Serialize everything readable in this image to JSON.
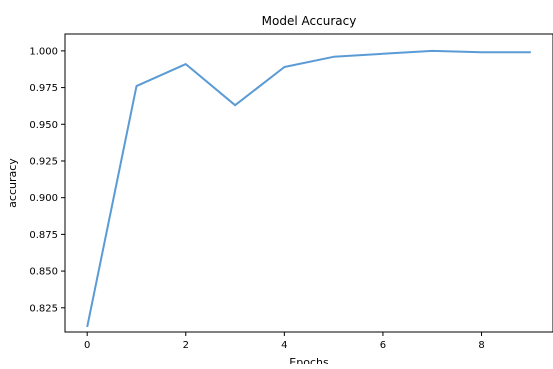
{
  "chart_data": {
    "type": "line",
    "title": "Model Accuracy",
    "xlabel": "Epochs",
    "ylabel": "accuracy",
    "xlim": [
      -0.45,
      9.45
    ],
    "ylim": [
      0.8085,
      1.0115
    ],
    "xticks": [
      0,
      2,
      4,
      6,
      8
    ],
    "yticks": [
      0.825,
      0.85,
      0.875,
      0.9,
      0.925,
      0.95,
      0.975,
      1.0
    ],
    "ytick_labels": [
      "0.825",
      "0.850",
      "0.875",
      "0.900",
      "0.925",
      "0.950",
      "0.975",
      "1.000"
    ],
    "xtick_labels": [
      "0",
      "2",
      "4",
      "6",
      "8"
    ],
    "series": [
      {
        "color": "#5b9bd5",
        "x": [
          0,
          1,
          2,
          3,
          4,
          5,
          6,
          7,
          8,
          9
        ],
        "y": [
          0.812,
          0.976,
          0.991,
          0.963,
          0.989,
          0.996,
          0.998,
          1.0,
          0.999,
          0.999
        ]
      }
    ],
    "grid": false,
    "legend": "none"
  }
}
